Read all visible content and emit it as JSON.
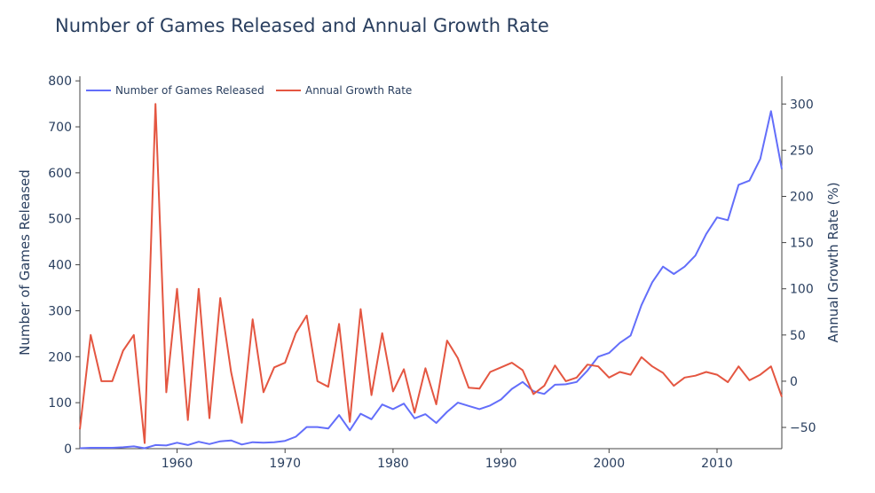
{
  "chart_data": {
    "type": "line",
    "title": "Number of Games Released and Annual Growth Rate",
    "xlim": [
      1951,
      2016
    ],
    "x_ticks": [
      1960,
      1970,
      1980,
      1990,
      2000,
      2010
    ],
    "y_left": {
      "label": "Number of Games Released",
      "range": [
        0,
        810
      ],
      "ticks": [
        0,
        100,
        200,
        300,
        400,
        500,
        600,
        700,
        800
      ]
    },
    "y_right": {
      "label": "Annual Growth Rate (%)",
      "range": [
        -73,
        330
      ],
      "ticks": [
        -50,
        0,
        50,
        100,
        150,
        200,
        250,
        300
      ]
    },
    "grid": false,
    "legend": "top-left",
    "colors": {
      "games": "#636EFA",
      "growth": "#E45641",
      "text": "#2a3f5f",
      "axis": "#444444"
    },
    "series": [
      {
        "name": "Number of Games Released",
        "axis": "left",
        "x": [
          1951,
          1952,
          1953,
          1954,
          1955,
          1956,
          1957,
          1958,
          1959,
          1960,
          1961,
          1962,
          1963,
          1964,
          1965,
          1966,
          1967,
          1968,
          1969,
          1970,
          1971,
          1972,
          1973,
          1974,
          1975,
          1976,
          1977,
          1978,
          1979,
          1980,
          1981,
          1982,
          1983,
          1984,
          1985,
          1986,
          1987,
          1988,
          1989,
          1990,
          1991,
          1992,
          1993,
          1994,
          1995,
          1996,
          1997,
          1998,
          1999,
          2000,
          2001,
          2002,
          2003,
          2004,
          2005,
          2006,
          2007,
          2008,
          2009,
          2010,
          2011,
          2012,
          2013,
          2014,
          2015,
          2016
        ],
        "values": [
          1,
          2,
          2,
          2,
          3,
          5,
          1,
          8,
          7,
          13,
          8,
          15,
          10,
          16,
          18,
          9,
          14,
          13,
          14,
          17,
          26,
          47,
          47,
          44,
          73,
          40,
          76,
          64,
          96,
          86,
          98,
          66,
          75,
          56,
          80,
          100,
          93,
          86,
          94,
          107,
          130,
          145,
          125,
          119,
          139,
          140,
          145,
          170,
          200,
          208,
          230,
          246,
          312,
          362,
          396,
          380,
          396,
          420,
          467,
          503,
          497,
          574,
          583,
          630,
          734,
          608
        ]
      },
      {
        "name": "Annual Growth Rate",
        "axis": "right",
        "x": [
          1951,
          1952,
          1953,
          1954,
          1955,
          1956,
          1957,
          1958,
          1959,
          1960,
          1961,
          1962,
          1963,
          1964,
          1965,
          1966,
          1967,
          1968,
          1969,
          1970,
          1971,
          1972,
          1973,
          1974,
          1975,
          1976,
          1977,
          1978,
          1979,
          1980,
          1981,
          1982,
          1983,
          1984,
          1985,
          1986,
          1987,
          1988,
          1989,
          1990,
          1991,
          1992,
          1993,
          1994,
          1995,
          1996,
          1997,
          1998,
          1999,
          2000,
          2001,
          2002,
          2003,
          2004,
          2005,
          2006,
          2007,
          2008,
          2009,
          2010,
          2011,
          2012,
          2013,
          2014,
          2015,
          2016
        ],
        "values": [
          -52,
          50,
          0,
          0,
          33,
          50,
          -67,
          300,
          -12,
          100,
          -42,
          100,
          -40,
          90,
          10,
          -45,
          67,
          -12,
          15,
          20,
          52,
          71,
          0,
          -6,
          62,
          -44,
          78,
          -15,
          52,
          -11,
          13,
          -34,
          14,
          -25,
          44,
          25,
          -7,
          -8,
          10,
          15,
          20,
          12,
          -14,
          -5,
          17,
          0,
          4,
          18,
          16,
          4,
          10,
          7,
          26,
          16,
          9,
          -5,
          4,
          6,
          10,
          7,
          -1,
          16,
          1,
          7,
          16,
          -17
        ]
      }
    ]
  }
}
